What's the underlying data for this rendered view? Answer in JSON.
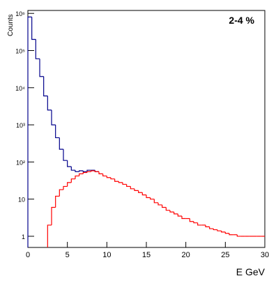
{
  "chart_data": {
    "type": "histogram",
    "annotation": "2-4 %",
    "ylabel": "Counts",
    "xlabel": "E GeV",
    "bins": [
      0,
      0.5,
      1,
      1.5,
      2,
      2.5,
      3,
      3.5,
      4,
      4.5,
      5,
      5.5,
      6,
      6.5,
      7,
      7.5,
      8,
      8.5,
      9,
      9.5,
      10,
      10.5,
      11,
      11.5,
      12,
      12.5,
      13,
      13.5,
      14,
      14.5,
      15,
      15.5,
      16,
      16.5,
      17,
      17.5,
      18,
      18.5,
      19,
      19.5,
      20,
      20.5,
      21,
      21.5,
      22,
      22.5,
      23,
      23.5,
      24,
      24.5,
      25,
      25.5,
      26,
      26.5,
      27,
      27.5,
      28,
      28.5,
      29,
      29.5,
      30
    ],
    "series": [
      {
        "color": "#00008b",
        "values": [
          800000,
          200000,
          60000,
          20000,
          6000,
          2500,
          1000,
          450,
          220,
          110,
          75,
          60,
          55,
          58,
          55,
          60,
          60,
          55,
          null,
          null,
          null,
          null,
          null,
          null,
          null,
          null,
          null,
          null,
          null,
          null,
          null,
          null,
          null,
          null,
          null,
          null,
          null,
          null,
          null,
          null,
          null,
          null,
          null,
          null,
          null,
          null,
          null,
          null,
          null,
          null,
          null,
          null,
          null,
          null,
          null,
          null,
          null,
          null,
          null,
          null
        ]
      },
      {
        "color": "#ff0000",
        "values": [
          null,
          null,
          null,
          null,
          null,
          2,
          6,
          12,
          18,
          22,
          28,
          35,
          42,
          48,
          52,
          55,
          58,
          55,
          48,
          42,
          38,
          35,
          30,
          28,
          25,
          22,
          19,
          17,
          15,
          13,
          11,
          10,
          8,
          7,
          6,
          5,
          4.5,
          4,
          3.5,
          3,
          3,
          2.5,
          2.3,
          2,
          2,
          1.8,
          1.6,
          1.5,
          1.4,
          1.3,
          1.2,
          1.1,
          1.1,
          1,
          1,
          1,
          1,
          1,
          1,
          1
        ]
      }
    ],
    "log_y": true,
    "xlim": [
      0,
      30
    ],
    "ylim": [
      0.5,
      1200000
    ],
    "xticks": [
      0,
      5,
      10,
      15,
      20,
      25,
      30
    ],
    "yticks": [
      1,
      10,
      {
        "value": 100,
        "label": "10²"
      },
      {
        "value": 1000,
        "label": "10³"
      },
      {
        "value": 10000,
        "label": "10⁴"
      },
      {
        "value": 100000,
        "label": "10⁵"
      },
      {
        "value": 1000000,
        "label": "10⁶"
      }
    ]
  }
}
